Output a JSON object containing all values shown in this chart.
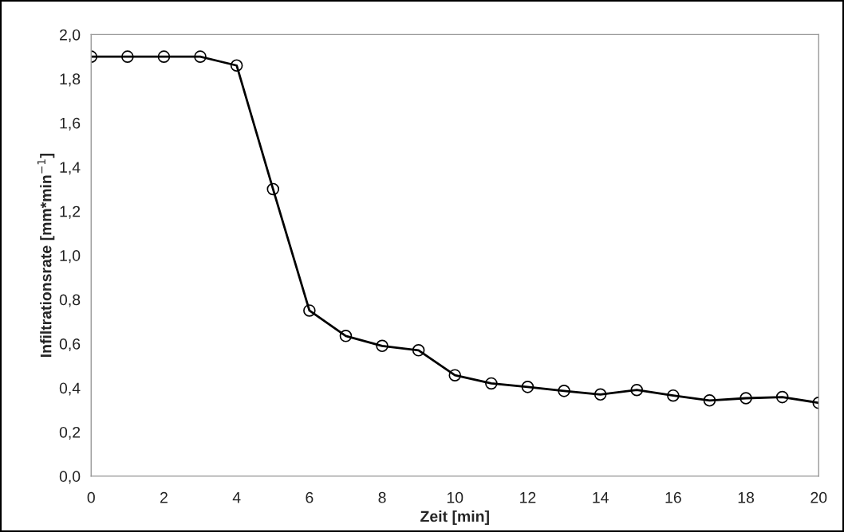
{
  "chart_data": {
    "type": "line",
    "xlabel": "Zeit [min]",
    "ylabel": "Infiltrationsrate [mm*min$^{−1}$]",
    "x": [
      0,
      1,
      2,
      3,
      4,
      5,
      6,
      7,
      8,
      9,
      10,
      11,
      12,
      13,
      14,
      15,
      16,
      17,
      18,
      19,
      20
    ],
    "series": [
      {
        "color": "#000000",
        "values": [
          1.9,
          1.9,
          1.9,
          1.9,
          1.86,
          1.3,
          0.75,
          0.635,
          0.59,
          0.57,
          0.457,
          0.42,
          0.404,
          0.386,
          0.37,
          0.39,
          0.365,
          0.343,
          0.353,
          0.358,
          0.332
        ]
      }
    ],
    "xlim": [
      0,
      20
    ],
    "xticks": [
      0,
      2,
      4,
      6,
      8,
      10,
      12,
      14,
      16,
      18,
      20
    ],
    "ylim": [
      0,
      2.0
    ],
    "yticks": [
      {
        "value": 0,
        "label": "0,0"
      },
      {
        "value": 0.2,
        "label": "0,2"
      },
      {
        "value": 0.4,
        "label": "0,4"
      },
      {
        "value": 0.6,
        "label": "0,6"
      },
      {
        "value": 0.8,
        "label": "0,8"
      },
      {
        "value": 1.0,
        "label": "1,0"
      },
      {
        "value": 1.2,
        "label": "1,2"
      },
      {
        "value": 1.4,
        "label": "1,4"
      },
      {
        "value": 1.6,
        "label": "1,6"
      },
      {
        "value": 1.8,
        "label": "1,8"
      },
      {
        "value": 2.0,
        "label": "2,0"
      }
    ],
    "grid": false,
    "legend": false,
    "marker": "circle",
    "line_style": "solid"
  }
}
